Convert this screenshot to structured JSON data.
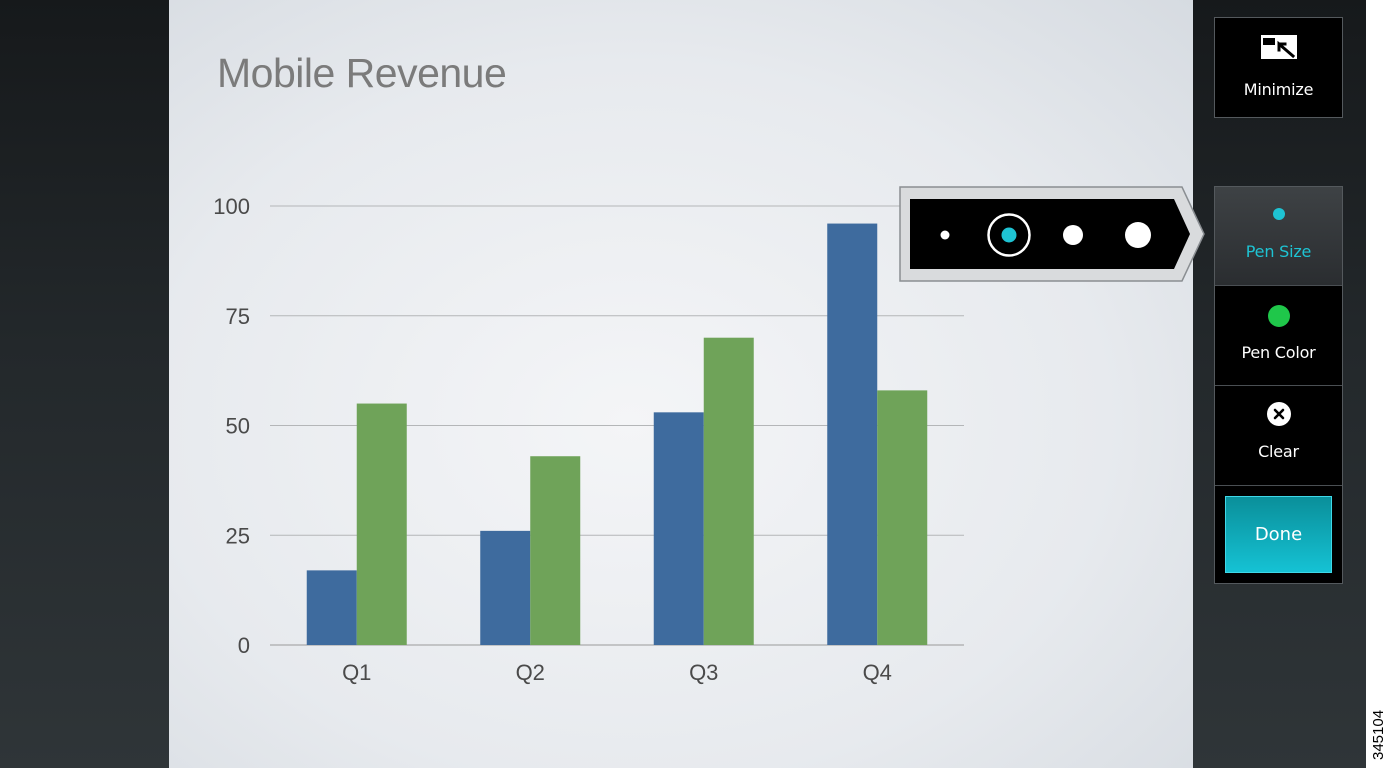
{
  "slide": {
    "title": "Mobile Revenue"
  },
  "chart_data": {
    "type": "bar",
    "title": "Mobile Revenue",
    "categories": [
      "Q1",
      "Q2",
      "Q3",
      "Q4"
    ],
    "series": [
      {
        "values": [
          17,
          26,
          53,
          96
        ],
        "color": "#3e6b9e"
      },
      {
        "values": [
          55,
          43,
          70,
          58
        ],
        "color": "#6fa359"
      }
    ],
    "yticks": [
      0,
      25,
      50,
      75,
      100
    ],
    "ylim": [
      0,
      100
    ],
    "grid": true,
    "legend": "none",
    "xlabel": "",
    "ylabel": ""
  },
  "toolbar": {
    "minimize": {
      "label": "Minimize",
      "icon": "minimize-icon"
    },
    "pen_size": {
      "label": "Pen Size",
      "icon": "pen-size-dot-icon",
      "color": "#1ec3d3",
      "active": true
    },
    "pen_color": {
      "label": "Pen Color",
      "icon": "pen-color-dot-icon",
      "color": "#1fc74a"
    },
    "clear": {
      "label": "Clear",
      "icon": "clear-x-icon"
    },
    "done": {
      "label": "Done",
      "color": "#15c2d4"
    }
  },
  "pen_size_popover": {
    "options": [
      {
        "name": "extra-small",
        "selected": false
      },
      {
        "name": "small",
        "selected": true,
        "color": "#1ec3d3"
      },
      {
        "name": "medium",
        "selected": false
      },
      {
        "name": "large",
        "selected": false
      }
    ]
  },
  "figure_id": "345104"
}
